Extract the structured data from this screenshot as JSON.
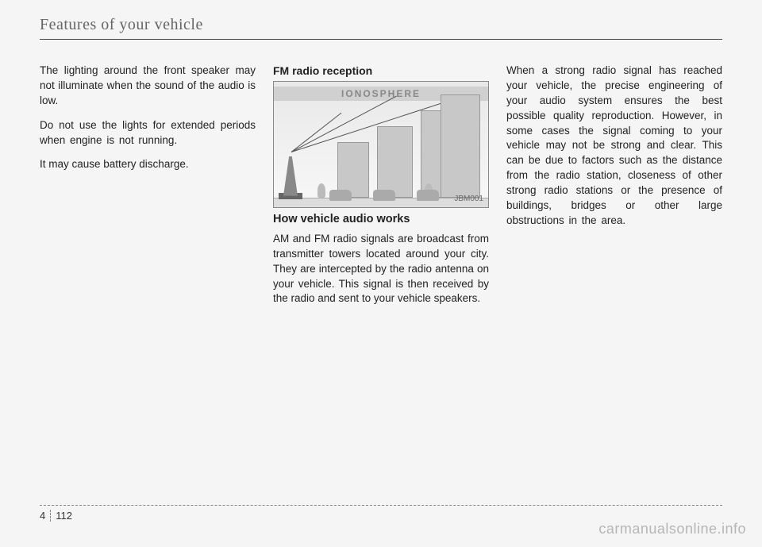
{
  "header": {
    "title": "Features of your vehicle"
  },
  "col1": {
    "p1": "The lighting around the front speaker may not illuminate when the sound of the audio is low.",
    "p2": "Do not use the lights for extended periods when engine is not running.",
    "p3": "It may cause battery discharge."
  },
  "col2": {
    "fig_title": "FM radio reception",
    "ionosphere": "IONOSPHERE",
    "fig_code": "JBM001",
    "subheading": "How vehicle audio works",
    "p1": "AM and FM radio signals are broadcast from transmitter towers located around your city. They are intercepted by the radio antenna on your vehicle. This signal is then received by the radio and sent to your vehicle speakers."
  },
  "col3": {
    "p1": "When a strong radio signal has reached your vehicle, the precise engineering of your audio system ensures the best possible quality reproduction. However, in some cases the signal coming to your vehicle may not be strong and clear. This can be due to factors such as the distance from the radio station, closeness of other strong radio stations or the presence of buildings, bridges or other large obstructions in the area."
  },
  "footer": {
    "chapter": "4",
    "page": "112"
  },
  "watermark": "carmanualsonline.info"
}
